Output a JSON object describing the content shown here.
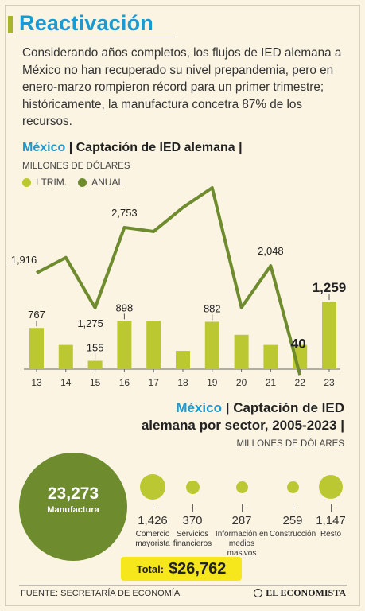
{
  "header": {
    "title": "Reactivación",
    "intro": "Considerando años completos, los flujos de IED alemana a México no han recuperado su nivel prepandemia, pero en enero-marzo rompieron récord para un primer trimestre; históricamente, la manufactura concetra 87% de los recursos."
  },
  "chart1": {
    "title_place": "México",
    "title_sep": " | ",
    "title_main": "Captación de IED alemana",
    "title_end": " |",
    "units": "MILLONES DE DÓLARES",
    "legend_q1": "I TRIM.",
    "legend_annual": "ANUAL"
  },
  "chart_data": {
    "type": "bar",
    "title": "México | Captación de IED alemana",
    "ylabel": "MILLONES DE DÓLARES",
    "categories": [
      "13",
      "14",
      "15",
      "16",
      "17",
      "18",
      "19",
      "20",
      "21",
      "22",
      "23"
    ],
    "series": [
      {
        "name": "I TRIM.",
        "type": "bar",
        "values": [
          767,
          450,
          155,
          898,
          898,
          340,
          882,
          640,
          450,
          450,
          1259
        ]
      },
      {
        "name": "ANUAL",
        "type": "line",
        "values": [
          1916,
          2200,
          1275,
          2753,
          2680,
          3120,
          3484,
          1280,
          2048,
          40,
          null
        ]
      }
    ],
    "bar_labels": [
      "767",
      "",
      "155",
      "898",
      "",
      "",
      "882",
      "",
      "",
      "",
      "1,259"
    ],
    "line_labels": [
      "1,916",
      "",
      "1,275",
      "2,753",
      "",
      "",
      "3,484",
      "",
      "2,048",
      "40",
      ""
    ],
    "colors": {
      "q1": "#bcc832",
      "annual": "#6e8b2e"
    }
  },
  "sectors": {
    "title_place": "México",
    "title_sep": " | ",
    "title_main_1": "Captación de IED",
    "title_main_2": "alemana por sector, 2005-2023",
    "title_end": " |",
    "units": "MILLONES DE DÓLARES",
    "main": {
      "value": "23,273",
      "label": "Manufactura"
    },
    "items": [
      {
        "value": "1,426",
        "label": "Comercio mayorista"
      },
      {
        "value": "370",
        "label": "Servicios financieros"
      },
      {
        "value": "287",
        "label": "Información en medios masivos"
      },
      {
        "value": "259",
        "label": "Construcción"
      },
      {
        "value": "1,147",
        "label": "Resto"
      }
    ],
    "total_label": "Total:",
    "total_value": "$26,762"
  },
  "footer": {
    "source": "FUENTE: SECRETARÍA DE ECONOMÍA",
    "brand": "EL ECONOMISTA"
  }
}
